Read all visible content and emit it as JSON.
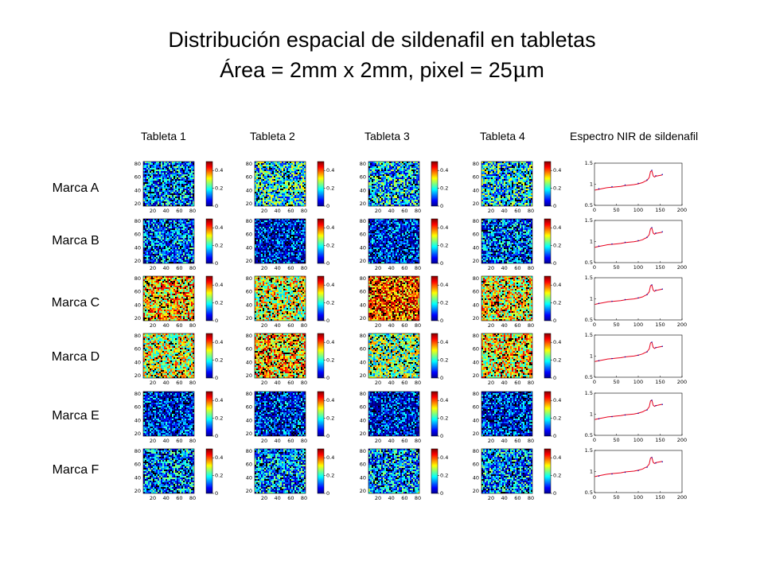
{
  "title_line1": "Distribución espacial de sildenafil en tabletas",
  "title_line2_prefix": "Área = 2mm x 2mm, pixel = 25",
  "title_line2_mu": "μ",
  "title_line2_suffix": "m",
  "columns": [
    "Tableta 1",
    "Tableta 2",
    "Tableta 3",
    "Tableta 4",
    "Espectro NIR de sildenafil"
  ],
  "rows": [
    "Marca A",
    "Marca B",
    "Marca C",
    "Marca D",
    "Marca E",
    "Marca F"
  ],
  "chart_data": {
    "maps": {
      "type": "heatmap",
      "x_ticks": [
        "20",
        "40",
        "60",
        "80"
      ],
      "y_ticks": [
        "80",
        "60",
        "40",
        "20"
      ],
      "colorbar_ticks": [
        "0.4",
        "0.2",
        "0"
      ],
      "colorbar_range": [
        0,
        0.5
      ]
    },
    "spectrum": {
      "type": "line",
      "x_ticks": [
        "0",
        "50",
        "100",
        "150",
        "200"
      ],
      "y_ticks": [
        "1.5",
        "1",
        "0.5"
      ],
      "xlim": [
        0,
        200
      ],
      "ylim": [
        0.5,
        1.5
      ],
      "series": [
        {
          "color": "#e8001c",
          "x": [
            1,
            10,
            20,
            30,
            40,
            50,
            60,
            70,
            80,
            90,
            100,
            110,
            115,
            120,
            125,
            128,
            131,
            134,
            137,
            140,
            145,
            150,
            155
          ],
          "y": [
            0.86,
            0.88,
            0.9,
            0.92,
            0.93,
            0.94,
            0.95,
            0.97,
            0.98,
            0.99,
            1.01,
            1.04,
            1.07,
            1.09,
            1.16,
            1.3,
            1.32,
            1.2,
            1.17,
            1.19,
            1.2,
            1.21,
            1.22
          ]
        }
      ]
    },
    "row_map_levels": [
      [
        0.12,
        0.18,
        0.15,
        0.17
      ],
      [
        0.1,
        0.05,
        0.06,
        0.1
      ],
      [
        0.32,
        0.28,
        0.38,
        0.3
      ],
      [
        0.28,
        0.32,
        0.24,
        0.3
      ],
      [
        0.06,
        0.06,
        0.05,
        0.06
      ],
      [
        0.12,
        0.12,
        0.13,
        0.12
      ]
    ]
  }
}
